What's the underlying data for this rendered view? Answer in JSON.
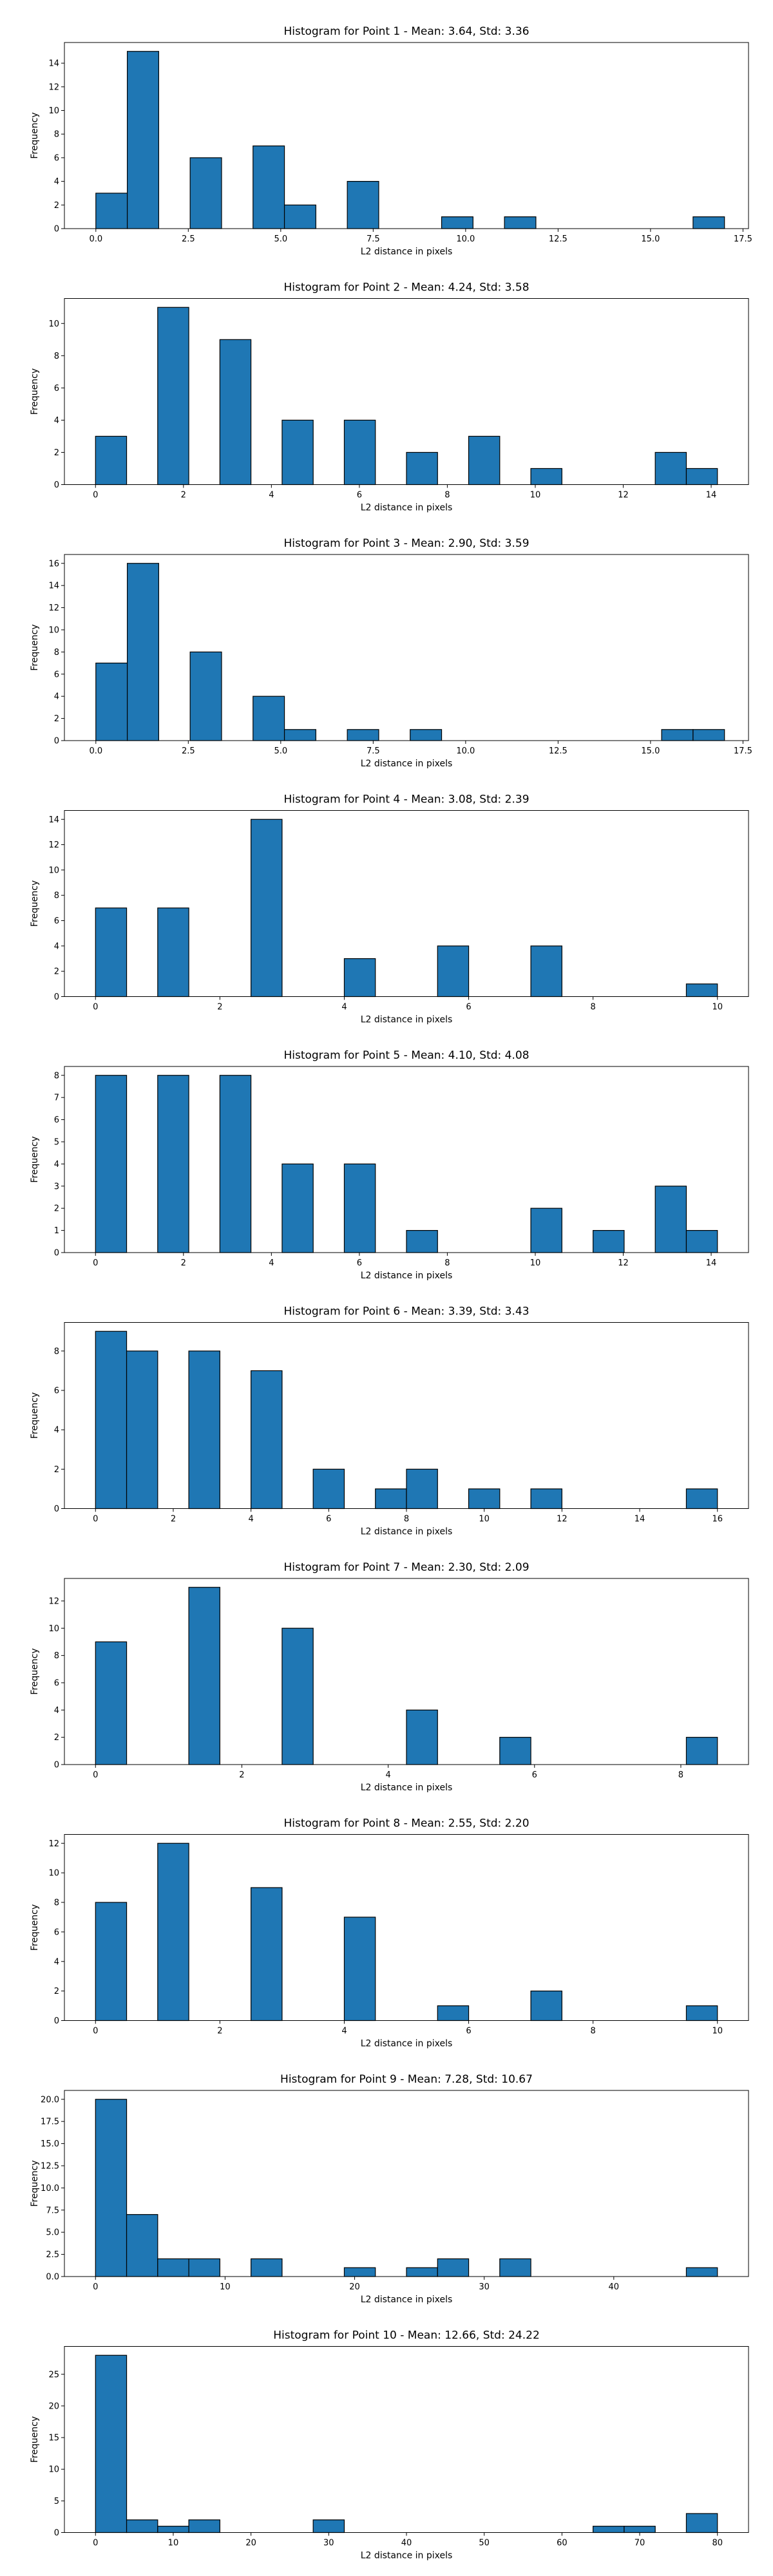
{
  "chart_data": [
    {
      "type": "bar",
      "title": "Histogram for Point 1 - Mean: 3.64, Std: 3.36",
      "xlabel": "L2 distance in pixels",
      "ylabel": "Frequency",
      "xlim": [
        -0.85,
        17.65
      ],
      "ylim": [
        0,
        15.75
      ],
      "bin_width": 0.85,
      "bars": [
        {
          "x": 0.0,
          "count": 3
        },
        {
          "x": 0.85,
          "count": 15
        },
        {
          "x": 2.55,
          "count": 6
        },
        {
          "x": 4.25,
          "count": 7
        },
        {
          "x": 5.1,
          "count": 2
        },
        {
          "x": 6.8,
          "count": 4
        },
        {
          "x": 9.35,
          "count": 1
        },
        {
          "x": 11.05,
          "count": 1
        },
        {
          "x": 16.15,
          "count": 1
        }
      ],
      "xticks": [
        0.0,
        2.5,
        5.0,
        7.5,
        10.0,
        12.5,
        15.0,
        17.5
      ],
      "xtick_labels": [
        "0.0",
        "2.5",
        "5.0",
        "7.5",
        "10.0",
        "12.5",
        "15.0",
        "17.5"
      ],
      "yticks": [
        0,
        2,
        4,
        6,
        8,
        10,
        12,
        14
      ],
      "ytick_labels": [
        "0",
        "2",
        "4",
        "6",
        "8",
        "10",
        "12",
        "14"
      ]
    },
    {
      "type": "bar",
      "title": "Histogram for Point 2 - Mean: 4.24, Std: 3.58",
      "xlabel": "L2 distance in pixels",
      "ylabel": "Frequency",
      "xlim": [
        -0.707,
        14.849
      ],
      "ylim": [
        0,
        11.55
      ],
      "bin_width": 0.707,
      "bars": [
        {
          "x": 0.0,
          "count": 3
        },
        {
          "x": 1.414,
          "count": 11
        },
        {
          "x": 2.828,
          "count": 9
        },
        {
          "x": 4.243,
          "count": 4
        },
        {
          "x": 5.657,
          "count": 4
        },
        {
          "x": 7.071,
          "count": 2
        },
        {
          "x": 8.485,
          "count": 3
        },
        {
          "x": 9.899,
          "count": 1
        },
        {
          "x": 12.728,
          "count": 2
        },
        {
          "x": 13.435,
          "count": 1
        }
      ],
      "xticks": [
        0,
        2,
        4,
        6,
        8,
        10,
        12,
        14
      ],
      "xtick_labels": [
        "0",
        "2",
        "4",
        "6",
        "8",
        "10",
        "12",
        "14"
      ],
      "yticks": [
        0,
        2,
        4,
        6,
        8,
        10
      ],
      "ytick_labels": [
        "0",
        "2",
        "4",
        "6",
        "8",
        "10"
      ]
    },
    {
      "type": "bar",
      "title": "Histogram for Point 3 - Mean: 2.90, Std: 3.59",
      "xlabel": "L2 distance in pixels",
      "ylabel": "Frequency",
      "xlim": [
        -0.85,
        17.65
      ],
      "ylim": [
        0,
        16.8
      ],
      "bin_width": 0.85,
      "bars": [
        {
          "x": 0.0,
          "count": 7
        },
        {
          "x": 0.85,
          "count": 16
        },
        {
          "x": 2.55,
          "count": 8
        },
        {
          "x": 4.25,
          "count": 4
        },
        {
          "x": 5.1,
          "count": 1
        },
        {
          "x": 6.8,
          "count": 1
        },
        {
          "x": 8.5,
          "count": 1
        },
        {
          "x": 15.3,
          "count": 1
        },
        {
          "x": 16.15,
          "count": 1
        }
      ],
      "xticks": [
        0.0,
        2.5,
        5.0,
        7.5,
        10.0,
        12.5,
        15.0,
        17.5
      ],
      "xtick_labels": [
        "0.0",
        "2.5",
        "5.0",
        "7.5",
        "10.0",
        "12.5",
        "15.0",
        "17.5"
      ],
      "yticks": [
        0,
        2,
        4,
        6,
        8,
        10,
        12,
        14,
        16
      ],
      "ytick_labels": [
        "0",
        "2",
        "4",
        "6",
        "8",
        "10",
        "12",
        "14",
        "16"
      ]
    },
    {
      "type": "bar",
      "title": "Histogram for Point 4 - Mean: 3.08, Std: 2.39",
      "xlabel": "L2 distance in pixels",
      "ylabel": "Frequency",
      "xlim": [
        -0.5,
        10.5
      ],
      "ylim": [
        0,
        14.7
      ],
      "bin_width": 0.5,
      "bars": [
        {
          "x": 0.0,
          "count": 7
        },
        {
          "x": 1.0,
          "count": 7
        },
        {
          "x": 2.5,
          "count": 14
        },
        {
          "x": 4.0,
          "count": 3
        },
        {
          "x": 5.5,
          "count": 4
        },
        {
          "x": 7.0,
          "count": 4
        },
        {
          "x": 9.5,
          "count": 1
        }
      ],
      "xticks": [
        0,
        2,
        4,
        6,
        8,
        10
      ],
      "xtick_labels": [
        "0",
        "2",
        "4",
        "6",
        "8",
        "10"
      ],
      "yticks": [
        0,
        2,
        4,
        6,
        8,
        10,
        12,
        14
      ],
      "ytick_labels": [
        "0",
        "2",
        "4",
        "6",
        "8",
        "10",
        "12",
        "14"
      ]
    },
    {
      "type": "bar",
      "title": "Histogram for Point 5 - Mean: 4.10, Std: 4.08",
      "xlabel": "L2 distance in pixels",
      "ylabel": "Frequency",
      "xlim": [
        -0.707,
        14.849
      ],
      "ylim": [
        0,
        8.4
      ],
      "bin_width": 0.707,
      "bars": [
        {
          "x": 0.0,
          "count": 8
        },
        {
          "x": 1.414,
          "count": 8
        },
        {
          "x": 2.828,
          "count": 8
        },
        {
          "x": 4.243,
          "count": 4
        },
        {
          "x": 5.657,
          "count": 4
        },
        {
          "x": 7.071,
          "count": 1
        },
        {
          "x": 9.899,
          "count": 2
        },
        {
          "x": 11.314,
          "count": 1
        },
        {
          "x": 12.728,
          "count": 3
        },
        {
          "x": 13.435,
          "count": 1
        }
      ],
      "xticks": [
        0,
        2,
        4,
        6,
        8,
        10,
        12,
        14
      ],
      "xtick_labels": [
        "0",
        "2",
        "4",
        "6",
        "8",
        "10",
        "12",
        "14"
      ],
      "yticks": [
        0,
        1,
        2,
        3,
        4,
        5,
        6,
        7,
        8
      ],
      "ytick_labels": [
        "0",
        "1",
        "2",
        "3",
        "4",
        "5",
        "6",
        "7",
        "8"
      ]
    },
    {
      "type": "bar",
      "title": "Histogram for Point 6 - Mean: 3.39, Std: 3.43",
      "xlabel": "L2 distance in pixels",
      "ylabel": "Frequency",
      "xlim": [
        -0.8,
        16.8
      ],
      "ylim": [
        0,
        9.45
      ],
      "bin_width": 0.8,
      "bars": [
        {
          "x": 0.0,
          "count": 9
        },
        {
          "x": 0.8,
          "count": 8
        },
        {
          "x": 2.4,
          "count": 8
        },
        {
          "x": 4.0,
          "count": 7
        },
        {
          "x": 5.6,
          "count": 2
        },
        {
          "x": 7.2,
          "count": 1
        },
        {
          "x": 8.0,
          "count": 2
        },
        {
          "x": 9.6,
          "count": 1
        },
        {
          "x": 11.2,
          "count": 1
        },
        {
          "x": 15.2,
          "count": 1
        }
      ],
      "xticks": [
        0,
        2,
        4,
        6,
        8,
        10,
        12,
        14,
        16
      ],
      "xtick_labels": [
        "0",
        "2",
        "4",
        "6",
        "8",
        "10",
        "12",
        "14",
        "16"
      ],
      "yticks": [
        0,
        2,
        4,
        6,
        8
      ],
      "ytick_labels": [
        "0",
        "2",
        "4",
        "6",
        "8"
      ]
    },
    {
      "type": "bar",
      "title": "Histogram for Point 7 - Mean: 2.30, Std: 2.09",
      "xlabel": "L2 distance in pixels",
      "ylabel": "Frequency",
      "xlim": [
        -0.425,
        8.925
      ],
      "ylim": [
        0,
        13.65
      ],
      "bin_width": 0.425,
      "bars": [
        {
          "x": 0.0,
          "count": 9
        },
        {
          "x": 1.275,
          "count": 13
        },
        {
          "x": 2.55,
          "count": 10
        },
        {
          "x": 4.25,
          "count": 4
        },
        {
          "x": 5.525,
          "count": 2
        },
        {
          "x": 8.075,
          "count": 2
        }
      ],
      "xticks": [
        0,
        2,
        4,
        6,
        8
      ],
      "xtick_labels": [
        "0",
        "2",
        "4",
        "6",
        "8"
      ],
      "yticks": [
        0,
        2,
        4,
        6,
        8,
        10,
        12
      ],
      "ytick_labels": [
        "0",
        "2",
        "4",
        "6",
        "8",
        "10",
        "12"
      ]
    },
    {
      "type": "bar",
      "title": "Histogram for Point 8 - Mean: 2.55, Std: 2.20",
      "xlabel": "L2 distance in pixels",
      "ylabel": "Frequency",
      "xlim": [
        -0.5,
        10.5
      ],
      "ylim": [
        0,
        12.6
      ],
      "bin_width": 0.5,
      "bars": [
        {
          "x": 0.0,
          "count": 8
        },
        {
          "x": 1.0,
          "count": 12
        },
        {
          "x": 2.5,
          "count": 9
        },
        {
          "x": 4.0,
          "count": 7
        },
        {
          "x": 5.5,
          "count": 1
        },
        {
          "x": 7.0,
          "count": 2
        },
        {
          "x": 9.5,
          "count": 1
        }
      ],
      "xticks": [
        0,
        2,
        4,
        6,
        8,
        10
      ],
      "xtick_labels": [
        "0",
        "2",
        "4",
        "6",
        "8",
        "10"
      ],
      "yticks": [
        0,
        2,
        4,
        6,
        8,
        10,
        12
      ],
      "ytick_labels": [
        "0",
        "2",
        "4",
        "6",
        "8",
        "10",
        "12"
      ]
    },
    {
      "type": "bar",
      "title": "Histogram for Point 9 - Mean: 7.28, Std: 10.67",
      "xlabel": "L2 distance in pixels",
      "ylabel": "Frequency",
      "xlim": [
        -2.4,
        50.4
      ],
      "ylim": [
        0,
        21.0
      ],
      "bin_width": 2.4,
      "bars": [
        {
          "x": 0.0,
          "count": 20
        },
        {
          "x": 2.4,
          "count": 7
        },
        {
          "x": 4.8,
          "count": 2
        },
        {
          "x": 7.2,
          "count": 2
        },
        {
          "x": 12.0,
          "count": 2
        },
        {
          "x": 19.2,
          "count": 1
        },
        {
          "x": 24.0,
          "count": 1
        },
        {
          "x": 26.4,
          "count": 2
        },
        {
          "x": 31.2,
          "count": 2
        },
        {
          "x": 45.6,
          "count": 1
        }
      ],
      "xticks": [
        0,
        10,
        20,
        30,
        40
      ],
      "xtick_labels": [
        "0",
        "10",
        "20",
        "30",
        "40"
      ],
      "yticks": [
        0,
        2.5,
        5.0,
        7.5,
        10.0,
        12.5,
        15.0,
        17.5,
        20.0
      ],
      "ytick_labels": [
        "0.0",
        "2.5",
        "5.0",
        "7.5",
        "10.0",
        "12.5",
        "15.0",
        "17.5",
        "20.0"
      ]
    },
    {
      "type": "bar",
      "title": "Histogram for Point 10 - Mean: 12.66, Std: 24.22",
      "xlabel": "L2 distance in pixels",
      "ylabel": "Frequency",
      "xlim": [
        -4.0,
        84.0
      ],
      "ylim": [
        0,
        29.4
      ],
      "bin_width": 4.0,
      "bars": [
        {
          "x": 0.0,
          "count": 28
        },
        {
          "x": 4.0,
          "count": 2
        },
        {
          "x": 8.0,
          "count": 1
        },
        {
          "x": 12.0,
          "count": 2
        },
        {
          "x": 28.0,
          "count": 2
        },
        {
          "x": 64.0,
          "count": 1
        },
        {
          "x": 68.0,
          "count": 1
        },
        {
          "x": 76.0,
          "count": 3
        }
      ],
      "xticks": [
        0,
        10,
        20,
        30,
        40,
        50,
        60,
        70,
        80
      ],
      "xtick_labels": [
        "0",
        "10",
        "20",
        "30",
        "40",
        "50",
        "60",
        "70",
        "80"
      ],
      "yticks": [
        0,
        5,
        10,
        15,
        20,
        25
      ],
      "ytick_labels": [
        "0",
        "5",
        "10",
        "15",
        "20",
        "25"
      ]
    }
  ]
}
